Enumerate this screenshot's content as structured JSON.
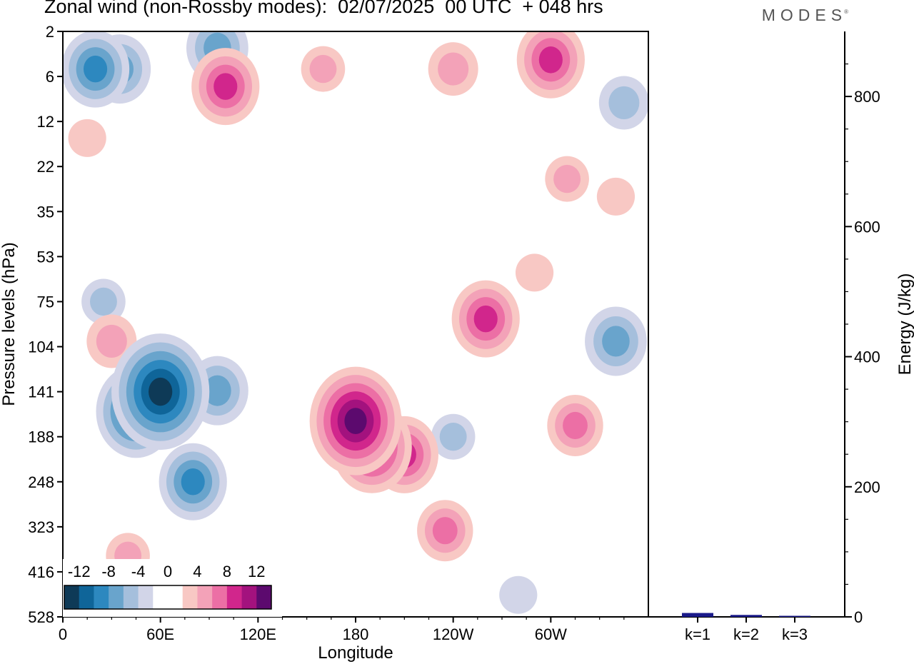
{
  "header": {
    "title": "Zonal wind (non-Rossby modes):  02/07/2025  00 UTC  + 048 hrs",
    "brand": "MODES"
  },
  "colors": {
    "neg": [
      "#0e3a57",
      "#0f6599",
      "#2d88bf",
      "#69a4cc",
      "#a5bfdc",
      "#d2d5e8"
    ],
    "pos": [
      "#f8c8c4",
      "#f3a2b8",
      "#ec6fa5",
      "#d1268c",
      "#a3127e",
      "#5c0a6e"
    ],
    "bar": "#1b1b8a"
  },
  "chart_data": [
    {
      "type": "heatmap",
      "title": "Zonal wind (non-Rossby modes):  02/07/2025  00 UTC  + 048 hrs",
      "xlabel": "Longitude",
      "ylabel": "Pressure levels (hPa)",
      "x_ticks": [
        "0",
        "60E",
        "120E",
        "180",
        "120W",
        "60W"
      ],
      "y_ticks": [
        "2",
        "6",
        "12",
        "22",
        "35",
        "53",
        "75",
        "104",
        "141",
        "188",
        "248",
        "323",
        "416",
        "528"
      ],
      "colorbar": {
        "tick_labels": [
          "-12",
          "-8",
          "-4",
          "0",
          "4",
          "8",
          "12"
        ],
        "levels": [
          -14,
          -12,
          -10,
          -8,
          -6,
          -4,
          -2,
          2,
          4,
          6,
          8,
          10,
          12,
          14
        ]
      },
      "blobs": [
        {
          "lon": 60,
          "level": 141,
          "value": -13
        },
        {
          "lon": 45,
          "level": 160,
          "value": -10
        },
        {
          "lon": 80,
          "level": 248,
          "value": -8
        },
        {
          "lon": 95,
          "level": 140,
          "value": -7
        },
        {
          "lon": 20,
          "level": 5,
          "value": -8
        },
        {
          "lon": 35,
          "level": 5,
          "value": -7
        },
        {
          "lon": 95,
          "level": 3,
          "value": -7
        },
        {
          "lon": 345,
          "level": 9,
          "value": -5
        },
        {
          "lon": 340,
          "level": 100,
          "value": -7
        },
        {
          "lon": 240,
          "level": 188,
          "value": -4
        },
        {
          "lon": 25,
          "level": 75,
          "value": -4
        },
        {
          "lon": 280,
          "level": 470,
          "value": -3
        },
        {
          "lon": 180,
          "level": 170,
          "value": 12
        },
        {
          "lon": 190,
          "level": 200,
          "value": 10
        },
        {
          "lon": 210,
          "level": 210,
          "value": 8
        },
        {
          "lon": 260,
          "level": 85,
          "value": 8
        },
        {
          "lon": 100,
          "level": 7,
          "value": 8
        },
        {
          "lon": 300,
          "level": 4,
          "value": 8
        },
        {
          "lon": 240,
          "level": 5,
          "value": 5
        },
        {
          "lon": 160,
          "level": 5,
          "value": 4
        },
        {
          "lon": 315,
          "level": 175,
          "value": 6
        },
        {
          "lon": 235,
          "level": 330,
          "value": 6
        },
        {
          "lon": 40,
          "level": 380,
          "value": 4
        },
        {
          "lon": 310,
          "level": 25,
          "value": 4
        },
        {
          "lon": 340,
          "level": 30,
          "value": 3
        },
        {
          "lon": 290,
          "level": 60,
          "value": 3
        },
        {
          "lon": 15,
          "level": 15,
          "value": 3
        },
        {
          "lon": 30,
          "level": 100,
          "value": 5
        }
      ]
    },
    {
      "type": "bar",
      "categories": [
        "k=1",
        "k=2",
        "k=3"
      ],
      "values": [
        6,
        3,
        1.5
      ],
      "ylabel": "Energy (J/kg)",
      "y_ticks": [
        "0",
        "200",
        "400",
        "600",
        "800"
      ],
      "ylim": [
        0,
        900
      ]
    }
  ]
}
